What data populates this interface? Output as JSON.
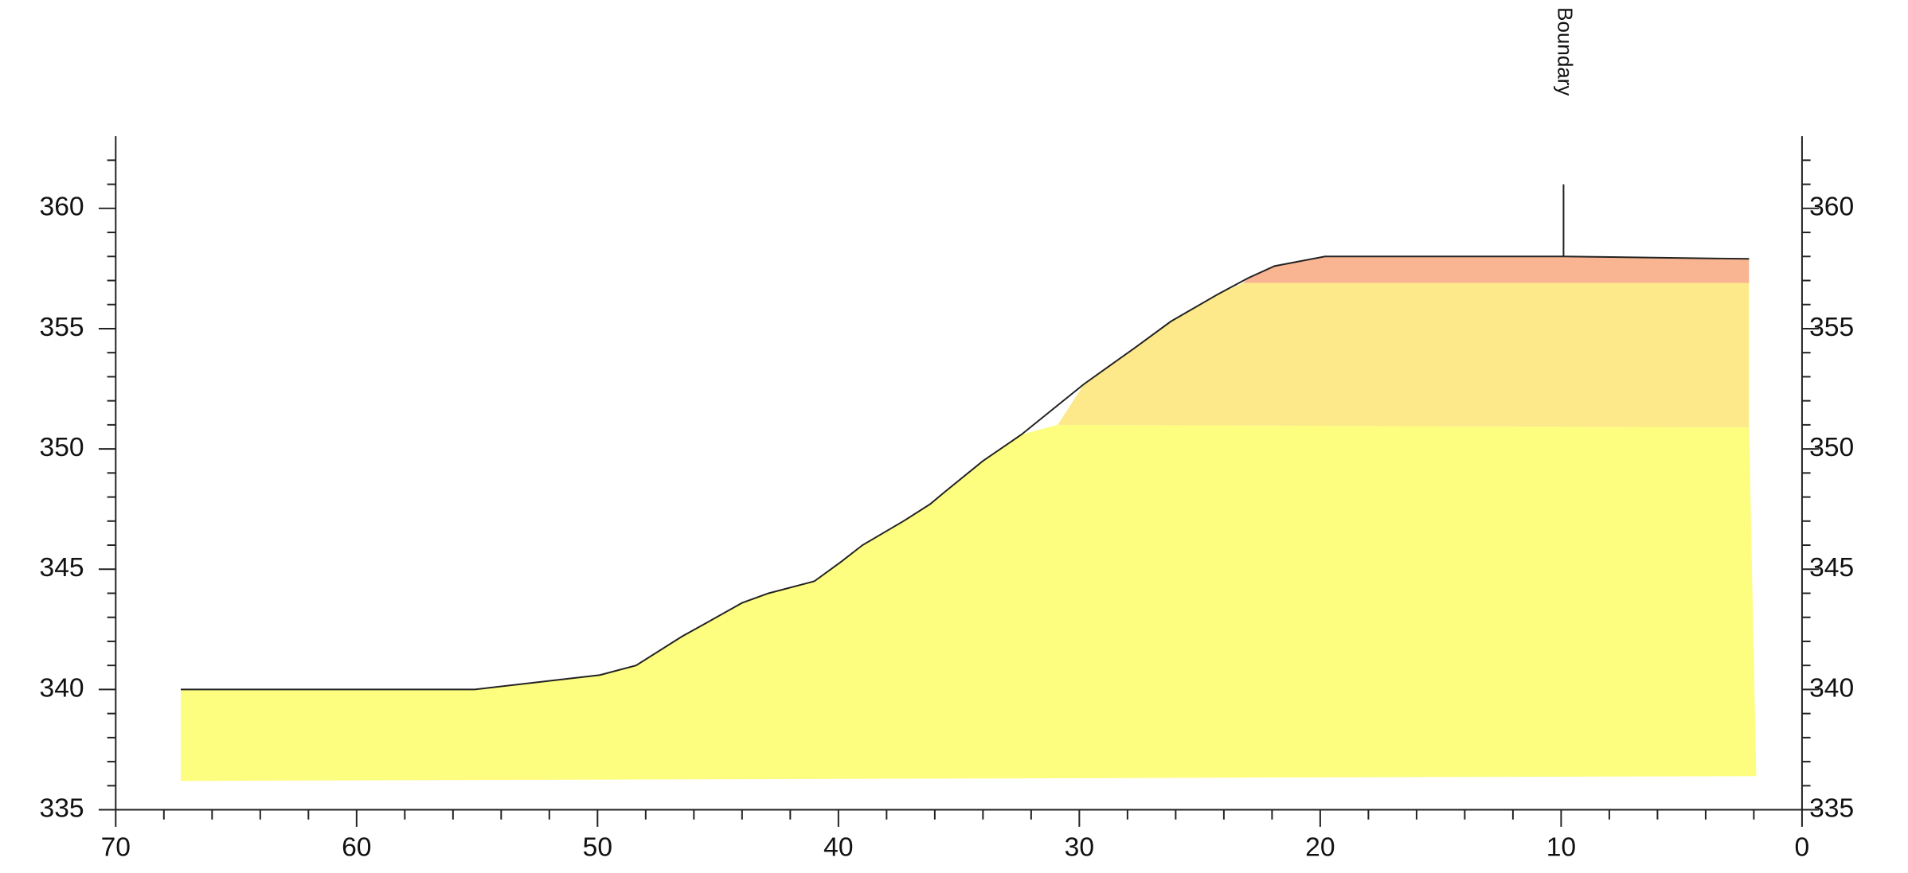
{
  "chart_data": {
    "type": "profile",
    "xlim": [
      70,
      0
    ],
    "ylim": [
      335,
      363
    ],
    "xticks": [
      70,
      60,
      50,
      40,
      30,
      20,
      10,
      0
    ],
    "yticks": [
      335,
      340,
      345,
      350,
      355,
      360
    ],
    "xminorticks": [
      68,
      66,
      64,
      62,
      58,
      56,
      54,
      52,
      48,
      46,
      44,
      42,
      38,
      36,
      34,
      32,
      28,
      26,
      24,
      22,
      18,
      16,
      14,
      12,
      8,
      6,
      4,
      2
    ],
    "yminorticks": [
      336,
      337,
      338,
      339,
      341,
      342,
      343,
      344,
      346,
      347,
      348,
      349,
      351,
      352,
      353,
      354,
      356,
      357,
      358,
      359,
      361,
      362
    ],
    "layers": [
      {
        "color": "#fdfd80",
        "x": [
          67.3,
          67.3,
          55.1,
          49.9,
          48.4,
          46.5,
          45.6,
          44.0,
          42.9,
          41.0,
          39.9,
          39.0,
          37.3,
          36.2,
          35.6,
          34.0,
          32.4,
          30.9,
          2.2,
          1.9
        ],
        "y": [
          336.2,
          340.0,
          340.0,
          340.6,
          341.0,
          342.2,
          342.7,
          343.6,
          344.0,
          344.5,
          345.3,
          346.0,
          347.0,
          347.7,
          348.2,
          349.5,
          350.6,
          351.0,
          350.9,
          336.4
        ]
      },
      {
        "color": "#fde98a",
        "x": [
          30.9,
          29.8,
          27.7,
          26.2,
          24.3,
          23.2,
          2.2,
          2.2
        ],
        "y": [
          351.0,
          352.7,
          354.2,
          355.3,
          356.4,
          356.9,
          356.9,
          350.9
        ]
      },
      {
        "color": "#f9b592",
        "x": [
          23.2,
          23.0,
          21.9,
          19.8,
          9.9,
          2.2,
          2.2
        ],
        "y": [
          356.9,
          357.1,
          357.6,
          358.0,
          358.0,
          357.9,
          356.9
        ]
      }
    ],
    "surface": {
      "color": "#222222",
      "x": [
        67.3,
        55.1,
        49.9,
        48.4,
        46.5,
        45.6,
        44.0,
        42.9,
        41.0,
        39.9,
        39.0,
        37.3,
        36.2,
        35.6,
        34.0,
        32.4,
        29.8,
        27.7,
        26.2,
        24.3,
        23.0,
        21.9,
        19.8,
        9.9,
        2.2
      ],
      "y": [
        340.0,
        340.0,
        340.6,
        341.0,
        342.2,
        342.7,
        343.6,
        344.0,
        344.5,
        345.3,
        346.0,
        347.0,
        347.7,
        348.2,
        349.5,
        350.6,
        352.7,
        354.2,
        355.3,
        356.4,
        357.1,
        357.6,
        358.0,
        358.0,
        357.9
      ]
    },
    "annotation": {
      "text": "Boundary",
      "x": 9.9,
      "y": [
        358.0,
        361.0
      ]
    }
  }
}
